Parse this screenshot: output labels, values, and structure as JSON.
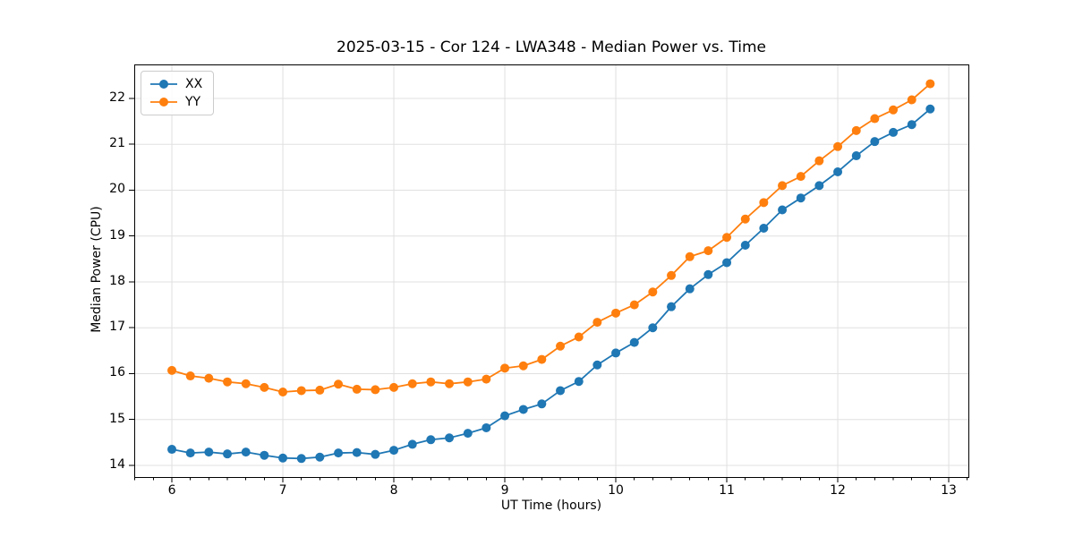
{
  "title": "2025-03-15 - Cor 124 - LWA348 - Median Power vs. Time",
  "chart_data": {
    "type": "line",
    "title": "2025-03-15 - Cor 124 - LWA348 - Median Power vs. Time",
    "xlabel": "UT Time (hours)",
    "ylabel": "Median Power (CPU)",
    "xlim": [
      5.661,
      13.177
    ],
    "ylim": [
      13.746,
      22.741
    ],
    "x_major_ticks": [
      6,
      7,
      8,
      9,
      10,
      11,
      12,
      13
    ],
    "y_major_ticks": [
      14,
      15,
      16,
      17,
      18,
      19,
      20,
      21,
      22
    ],
    "x_minor_tick_step": 0.16667,
    "grid": true,
    "legend_position": "upper left",
    "marker": "circle",
    "x": [
      6.0,
      6.167,
      6.333,
      6.5,
      6.667,
      6.833,
      7.0,
      7.167,
      7.333,
      7.5,
      7.667,
      7.833,
      8.0,
      8.167,
      8.333,
      8.5,
      8.667,
      8.833,
      9.0,
      9.167,
      9.333,
      9.5,
      9.667,
      9.833,
      10.0,
      10.167,
      10.333,
      10.5,
      10.667,
      10.833,
      11.0,
      11.167,
      11.333,
      11.5,
      11.667,
      11.833,
      12.0,
      12.167,
      12.333,
      12.5,
      12.667,
      12.833
    ],
    "series": [
      {
        "name": "XX",
        "color": "#1f77b4",
        "values": [
          14.35,
          14.27,
          14.29,
          14.25,
          14.29,
          14.22,
          14.16,
          14.15,
          14.18,
          14.27,
          14.28,
          14.24,
          14.33,
          14.46,
          14.56,
          14.6,
          14.7,
          14.82,
          15.08,
          15.22,
          15.34,
          15.63,
          15.83,
          16.19,
          16.45,
          16.68,
          17.0,
          17.46,
          17.85,
          18.16,
          18.42,
          18.8,
          19.17,
          19.57,
          19.83,
          20.1,
          20.4,
          20.75,
          21.06,
          21.26,
          21.43,
          21.77
        ]
      },
      {
        "name": "YY",
        "color": "#ff7f0e",
        "values": [
          16.07,
          15.95,
          15.9,
          15.82,
          15.78,
          15.7,
          15.6,
          15.63,
          15.64,
          15.77,
          15.66,
          15.65,
          15.7,
          15.78,
          15.82,
          15.78,
          15.82,
          15.88,
          16.12,
          16.17,
          16.31,
          16.6,
          16.8,
          17.12,
          17.32,
          17.5,
          17.78,
          18.14,
          18.55,
          18.68,
          18.97,
          19.37,
          19.73,
          20.1,
          20.3,
          20.64,
          20.95,
          21.3,
          21.56,
          21.75,
          21.97,
          22.32
        ]
      }
    ]
  }
}
